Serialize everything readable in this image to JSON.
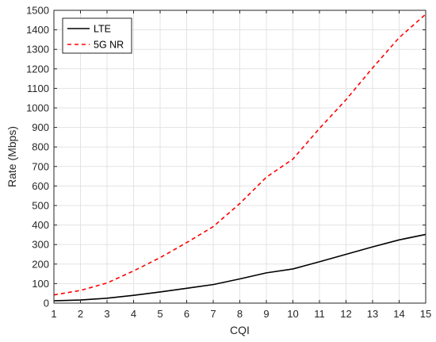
{
  "chart_data": {
    "type": "line",
    "title": "",
    "xlabel": "CQI",
    "ylabel": "Rate (Mbps)",
    "xlim": [
      1,
      15
    ],
    "ylim": [
      0,
      1500
    ],
    "xticks": [
      1,
      2,
      3,
      4,
      5,
      6,
      7,
      8,
      9,
      10,
      11,
      12,
      13,
      14,
      15
    ],
    "yticks": [
      0,
      100,
      200,
      300,
      400,
      500,
      600,
      700,
      800,
      900,
      1000,
      1100,
      1200,
      1300,
      1400,
      1500
    ],
    "grid": true,
    "legend_position": "top-left",
    "x": [
      1,
      2,
      3,
      4,
      5,
      6,
      7,
      8,
      9,
      10,
      11,
      12,
      13,
      14,
      15
    ],
    "series": [
      {
        "name": "LTE",
        "color": "#000000",
        "style": "solid",
        "values": [
          12,
          16,
          25,
          40,
          57,
          76,
          95,
          124,
          155,
          175,
          212,
          250,
          288,
          324,
          352
        ]
      },
      {
        "name": "5G NR",
        "color": "#ff0000",
        "style": "dashed",
        "values": [
          42,
          65,
          103,
          165,
          233,
          310,
          392,
          510,
          645,
          738,
          895,
          1042,
          1205,
          1360,
          1480
        ]
      }
    ]
  }
}
